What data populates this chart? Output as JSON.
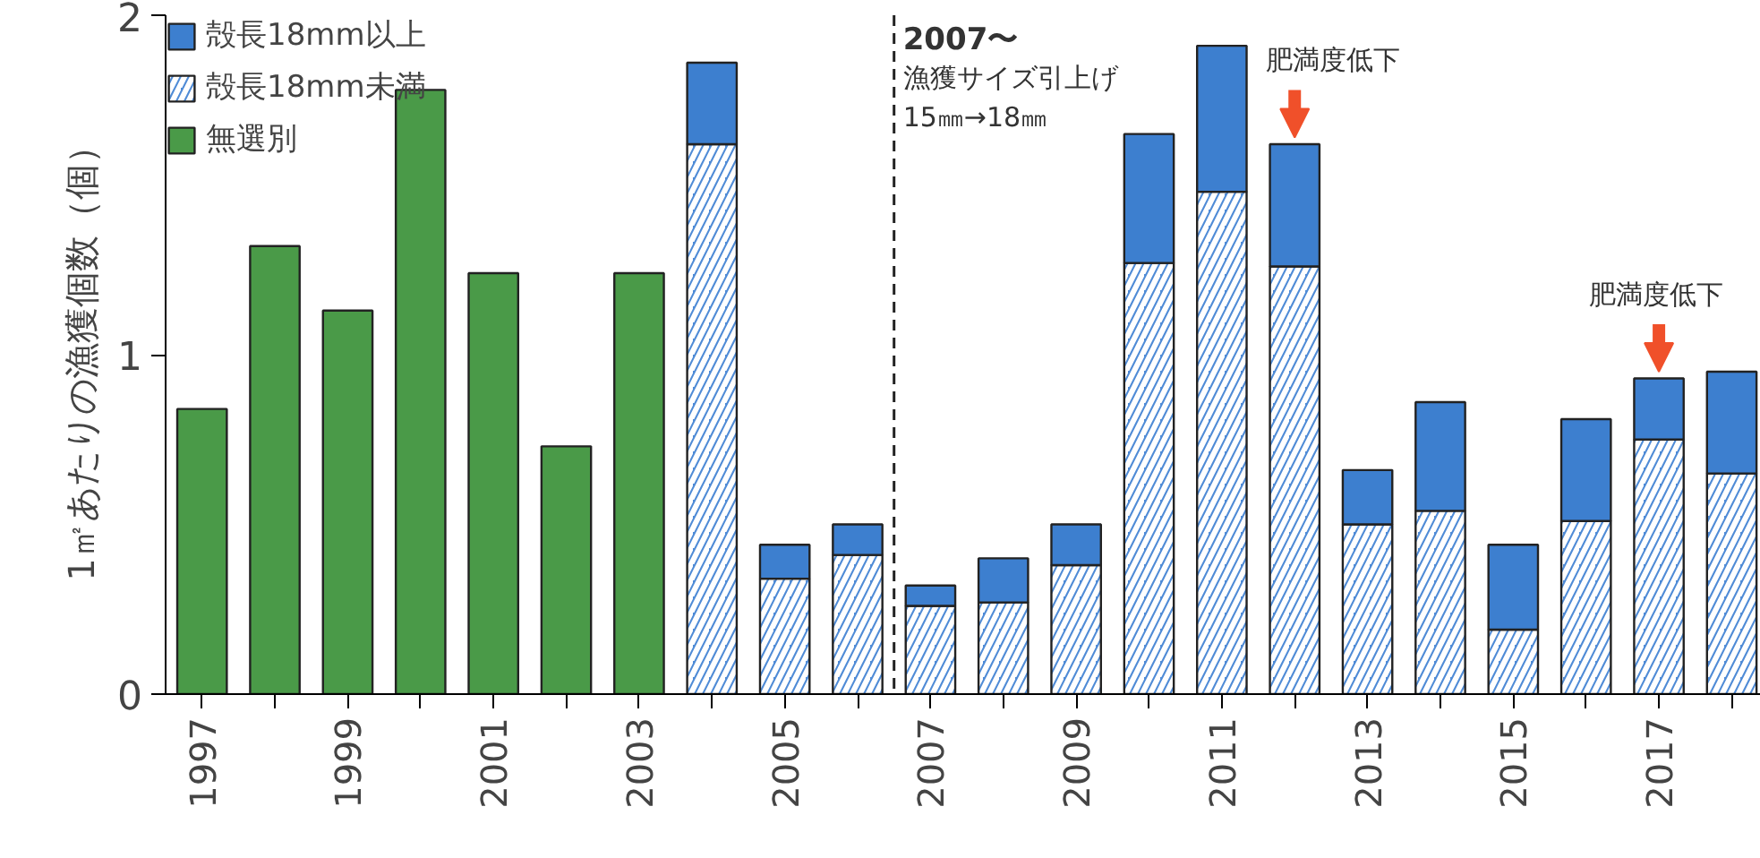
{
  "chart_data": {
    "type": "bar",
    "stacked": true,
    "ylabel": "1㎡あたりの漁獲個数（個）",
    "x": [
      1997,
      1998,
      1999,
      2000,
      2001,
      2002,
      2003,
      2004,
      2005,
      2006,
      2007,
      2008,
      2009,
      2010,
      2011,
      2012,
      2013,
      2014,
      2015,
      2016,
      2017,
      2018
    ],
    "series": [
      {
        "name": "無選別",
        "color": "#4a9a48",
        "values": [
          0.84,
          1.32,
          1.13,
          1.78,
          1.24,
          0.73,
          1.24,
          null,
          null,
          null,
          null,
          null,
          null,
          null,
          null,
          null,
          null,
          null,
          null,
          null,
          null,
          null
        ]
      },
      {
        "name": "殻長18mm未満",
        "color": "#4f8bd6",
        "values": [
          null,
          null,
          null,
          null,
          null,
          null,
          null,
          1.62,
          0.34,
          0.41,
          0.26,
          0.27,
          0.38,
          1.27,
          1.48,
          1.26,
          0.5,
          0.54,
          0.19,
          0.51,
          0.75,
          0.65
        ]
      },
      {
        "name": "殻長18mm以上",
        "color": "#3d7fcf",
        "values": [
          null,
          null,
          null,
          null,
          null,
          null,
          null,
          0.24,
          0.1,
          0.09,
          0.06,
          0.13,
          0.12,
          0.38,
          0.43,
          0.36,
          0.16,
          0.32,
          0.25,
          0.3,
          0.18,
          0.3
        ]
      }
    ],
    "xlim": [
      1996.5,
      2018.4
    ],
    "xticks": [
      1997,
      {
        "value": 1998,
        "label": null
      },
      1999,
      {
        "value": 2000,
        "label": null
      },
      2001,
      {
        "value": 2002,
        "label": null
      },
      2003,
      {
        "value": 2004,
        "label": null
      },
      2005,
      {
        "value": 2006,
        "label": null
      },
      2007,
      {
        "value": 2008,
        "label": null
      },
      2009,
      {
        "value": 2010,
        "label": null
      },
      2011,
      {
        "value": 2012,
        "label": null
      },
      2013,
      {
        "value": 2014,
        "label": null
      },
      2015,
      {
        "value": 2016,
        "label": null
      },
      2017,
      {
        "value": 2018,
        "label": null
      }
    ],
    "ylim": [
      0,
      2
    ],
    "yticks": [
      0,
      1,
      2
    ],
    "ref_lines": [
      {
        "axis": "x",
        "value": 2006.5,
        "label": "2007〜",
        "line_style": "dashed",
        "color": "#222222"
      }
    ],
    "annotations": [
      "漁獲サイズ引上げ",
      "15㎜→18㎜",
      {
        "text": "肥満度低下",
        "x": 2012,
        "y": 1.62
      },
      {
        "text": "肥満度低下",
        "x": 2017,
        "y": 0.93
      }
    ],
    "legend": "top left",
    "grid": false
  }
}
